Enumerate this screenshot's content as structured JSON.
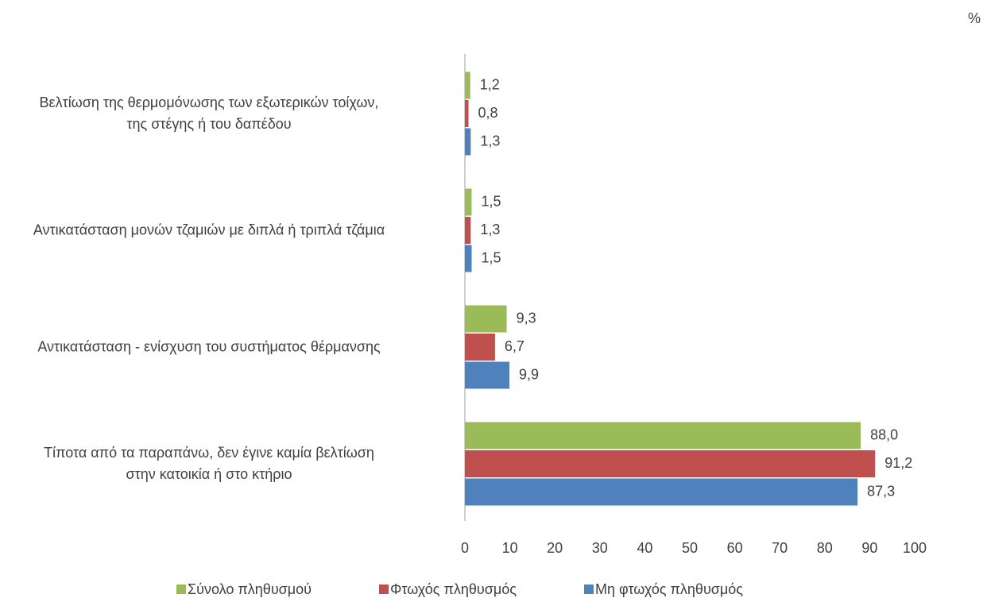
{
  "chart_data": {
    "type": "bar",
    "orientation": "horizontal",
    "unit": "%",
    "categories": [
      "Βελτίωση της θερμομόνωσης των εξωτερικών τοίχων,\nτης στέγης ή του δαπέδου",
      "Αντικατάσταση μονών τζαμιών με διπλά ή τριπλά τζάμια",
      "Αντικατάσταση - ενίσχυση του συστήματος θέρμανσης",
      "Τίποτα από τα παραπάνω, δεν έγινε καμία βελτίωση\nστην κατοικία ή στο κτήριο"
    ],
    "series": [
      {
        "name": "Σύνολο πληθυσμού",
        "color": "#9bbb59",
        "values": [
          1.2,
          1.5,
          9.3,
          88.0
        ],
        "value_labels": [
          "1,2",
          "1,5",
          "9,3",
          "88,0"
        ]
      },
      {
        "name": "Φτωχός πληθυσμός",
        "color": "#c0504d",
        "values": [
          0.8,
          1.3,
          6.7,
          91.2
        ],
        "value_labels": [
          "0,8",
          "1,3",
          "6,7",
          "91,2"
        ]
      },
      {
        "name": "Μη φτωχός πληθυσμός",
        "color": "#4f81bd",
        "values": [
          1.3,
          1.5,
          9.9,
          87.3
        ],
        "value_labels": [
          "1,3",
          "1,5",
          "9,9",
          "87,3"
        ]
      }
    ],
    "xlim": [
      0,
      100
    ],
    "xticks": [
      0,
      10,
      20,
      30,
      40,
      50,
      60,
      70,
      80,
      90,
      100
    ],
    "legend": "bottom"
  }
}
